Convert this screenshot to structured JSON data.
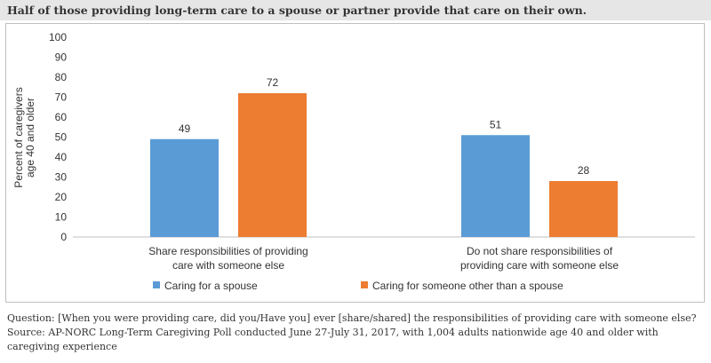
{
  "header": {
    "title": "Half of those providing long-term care to a spouse or partner provide that care on their own."
  },
  "notes": {
    "question": "Question: [When you were providing care, did you/Have you] ever [share/shared] the responsibilities of providing care with someone else?",
    "source_line1": "Source: AP-NORC Long-Term Caregiving Poll conducted June 27-July 31, 2017, with 1,004 adults nationwide age 40 and older with",
    "source_line2": "caregiving experience"
  },
  "chart_data": {
    "type": "bar",
    "categories": [
      [
        "Share responsibilities of providing",
        "care with someone else"
      ],
      [
        "Do not share responsibilities of",
        "providing care with someone else"
      ]
    ],
    "series": [
      {
        "name": "Caring for a spouse",
        "values": [
          49,
          51
        ],
        "color": "#5b9bd5"
      },
      {
        "name": "Caring for someone other than a spouse",
        "values": [
          72,
          28
        ],
        "color": "#ed7d31"
      }
    ],
    "ylabel": [
      "Percent of caregivers",
      "age 40 and older"
    ],
    "ylim": [
      0,
      100
    ],
    "yticks": [
      0,
      10,
      20,
      30,
      40,
      50,
      60,
      70,
      80,
      90,
      100
    ],
    "grid": false,
    "legend": "bottom-left"
  }
}
